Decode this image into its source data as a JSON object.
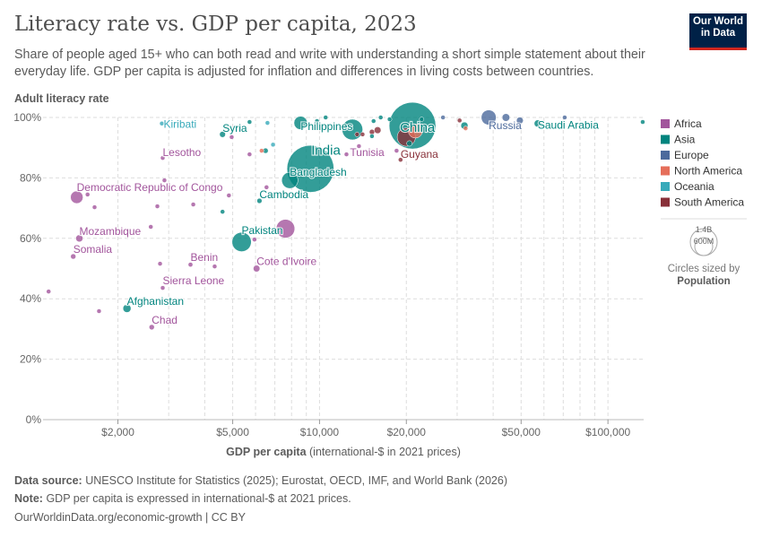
{
  "header": {
    "title": "Literacy rate vs. GDP per capita, 2023",
    "subtitle": "Share of people aged 15+ who can both read and write with understanding a short simple statement about their everyday life. GDP per capita is adjusted for inflation and differences in living costs between countries.",
    "logo_text": "Our World in Data"
  },
  "footer": {
    "source_label": "Data source:",
    "source": "UNESCO Institute for Statistics (2025); Eurostat, OECD, IMF, and World Bank (2026)",
    "note_label": "Note:",
    "note": "GDP per capita is expressed in international-$ at 2021 prices.",
    "url": "OurWorldinData.org/economic-growth | CC BY"
  },
  "colors": {
    "Africa": "#a2559c",
    "Asia": "#00847e",
    "Europe": "#4c6a9c",
    "North America": "#e56e5a",
    "Oceania": "#38aaba",
    "South America": "#883039"
  },
  "chart_data": {
    "type": "scatter",
    "title": "Literacy rate vs. GDP per capita, 2023",
    "ylabel": "Adult literacy rate",
    "xlabel_bold": "GDP per capita",
    "xlabel_rest": "(international-$ in 2021 prices)",
    "x_scale": "log",
    "xlim": [
      1100,
      133000
    ],
    "ylim": [
      0,
      100
    ],
    "grid": true,
    "x_ticks": [
      {
        "v": 2000,
        "label": "$2,000"
      },
      {
        "v": 5000,
        "label": "$5,000"
      },
      {
        "v": 10000,
        "label": "$10,000"
      },
      {
        "v": 20000,
        "label": "$20,000"
      },
      {
        "v": 50000,
        "label": "$50,000"
      },
      {
        "v": 100000,
        "label": "$100,000"
      }
    ],
    "y_ticks": [
      {
        "v": 0,
        "label": "0%"
      },
      {
        "v": 20,
        "label": "20%"
      },
      {
        "v": 40,
        "label": "40%"
      },
      {
        "v": 60,
        "label": "60%"
      },
      {
        "v": 80,
        "label": "80%"
      },
      {
        "v": 100,
        "label": "100%"
      }
    ],
    "legend": {
      "placement": "right",
      "entries": [
        "Africa",
        "Asia",
        "Europe",
        "North America",
        "Oceania",
        "South America"
      ],
      "size_legend": {
        "values": [
          "1.4B",
          "600M"
        ],
        "caption": "Circles sized by",
        "caption_bold": "Population"
      }
    },
    "points": [
      {
        "label": "Democratic Republic of Congo",
        "region": "Africa",
        "x": 1440,
        "y": 73.6,
        "pop": 102
      },
      {
        "label": "Mozambique",
        "region": "Africa",
        "x": 1470,
        "y": 60,
        "pop": 33
      },
      {
        "label": "Somalia",
        "region": "Africa",
        "x": 1400,
        "y": 54,
        "pop": 18
      },
      {
        "label": "Chad",
        "region": "Africa",
        "x": 2620,
        "y": 30.6,
        "pop": 18
      },
      {
        "label": "Afghanistan",
        "region": "Asia",
        "x": 2150,
        "y": 36.8,
        "pop": 42
      },
      {
        "label": "Sierra Leone",
        "region": "Africa",
        "x": 2860,
        "y": 43.6,
        "pop": 8.8
      },
      {
        "label": "Benin",
        "region": "Africa",
        "x": 3570,
        "y": 51.3,
        "pop": 14
      },
      {
        "label": "Cote d'Ivoire",
        "region": "Africa",
        "x": 6050,
        "y": 50,
        "pop": 29
      },
      {
        "label": "Pakistan",
        "region": "Asia",
        "x": 5370,
        "y": 58.8,
        "pop": 240
      },
      {
        "label": "",
        "region": "Africa",
        "x": 7620,
        "y": 63.2,
        "pop": 224
      },
      {
        "label": "Cambodia",
        "region": "Asia",
        "x": 6190,
        "y": 72.4,
        "pop": 17
      },
      {
        "label": "India",
        "region": "Asia",
        "x": 9300,
        "y": 83,
        "pop": 1430
      },
      {
        "label": "Bangladesh",
        "region": "Asia",
        "x": 7890,
        "y": 79.2,
        "pop": 171
      },
      {
        "label": "Philippines",
        "region": "Asia",
        "x": 8600,
        "y": 98.2,
        "pop": 115
      },
      {
        "label": "",
        "region": "Asia",
        "x": 13000,
        "y": 96,
        "pop": 277
      },
      {
        "label": "China",
        "region": "Asia",
        "x": 21000,
        "y": 97.3,
        "pop": 1410
      },
      {
        "label": "Tunisia",
        "region": "Africa",
        "x": 13700,
        "y": 90.5,
        "pop": 12
      },
      {
        "label": "",
        "region": "South America",
        "x": 20000,
        "y": 93.5,
        "pop": 216
      },
      {
        "label": "Guyana",
        "region": "South America",
        "x": 19100,
        "y": 86,
        "pop": 0.8
      },
      {
        "label": "Russia",
        "region": "Europe",
        "x": 38600,
        "y": 100,
        "pop": 144
      },
      {
        "label": "Saudi Arabia",
        "region": "Asia",
        "x": 57100,
        "y": 98,
        "pop": 33
      },
      {
        "label": "Kiribati",
        "region": "Oceania",
        "x": 2840,
        "y": 98,
        "pop": 0.13
      },
      {
        "label": "Syria",
        "region": "Asia",
        "x": 4610,
        "y": 94.4,
        "pop": 23
      },
      {
        "label": "Lesotho",
        "region": "Africa",
        "x": 2860,
        "y": 86.6,
        "pop": 2.3
      },
      {
        "label": "",
        "region": "Africa",
        "x": 1150,
        "y": 42.4,
        "pop": 5
      },
      {
        "label": "",
        "region": "Africa",
        "x": 1720,
        "y": 35.9,
        "pop": 6
      },
      {
        "label": "",
        "region": "Africa",
        "x": 1660,
        "y": 70.3,
        "pop": 4
      },
      {
        "label": "",
        "region": "Africa",
        "x": 1570,
        "y": 74.5,
        "pop": 3
      },
      {
        "label": "",
        "region": "Africa",
        "x": 2740,
        "y": 70.6,
        "pop": 4
      },
      {
        "label": "",
        "region": "Africa",
        "x": 2900,
        "y": 79.2,
        "pop": 3
      },
      {
        "label": "",
        "region": "Africa",
        "x": 3650,
        "y": 71.2,
        "pop": 5
      },
      {
        "label": "",
        "region": "Africa",
        "x": 4850,
        "y": 74.2,
        "pop": 12
      },
      {
        "label": "",
        "region": "Asia",
        "x": 4610,
        "y": 68.8,
        "pop": 8
      },
      {
        "label": "",
        "region": "Africa",
        "x": 2600,
        "y": 63.8,
        "pop": 3
      },
      {
        "label": "",
        "region": "Africa",
        "x": 2800,
        "y": 51.6,
        "pop": 4
      },
      {
        "label": "",
        "region": "Africa",
        "x": 4330,
        "y": 50.7,
        "pop": 4
      },
      {
        "label": "",
        "region": "Africa",
        "x": 5950,
        "y": 59.6,
        "pop": 4
      },
      {
        "label": "",
        "region": "Africa",
        "x": 6550,
        "y": 76.9,
        "pop": 8
      },
      {
        "label": "",
        "region": "Africa",
        "x": 4960,
        "y": 93.5,
        "pop": 3
      },
      {
        "label": "",
        "region": "Asia",
        "x": 5720,
        "y": 98.5,
        "pop": 4
      },
      {
        "label": "",
        "region": "Oceania",
        "x": 6600,
        "y": 98.2,
        "pop": 1
      },
      {
        "label": "",
        "region": "Africa",
        "x": 5720,
        "y": 87.8,
        "pop": 3
      },
      {
        "label": "",
        "region": "North America",
        "x": 6300,
        "y": 89,
        "pop": 2
      },
      {
        "label": "",
        "region": "Asia",
        "x": 6500,
        "y": 89,
        "pop": 18
      },
      {
        "label": "",
        "region": "Oceania",
        "x": 6900,
        "y": 91,
        "pop": 1
      },
      {
        "label": "",
        "region": "South America",
        "x": 15200,
        "y": 95.2,
        "pop": 18
      },
      {
        "label": "",
        "region": "South America",
        "x": 13500,
        "y": 94.4,
        "pop": 5
      },
      {
        "label": "",
        "region": "South America",
        "x": 14100,
        "y": 94.4,
        "pop": 4
      },
      {
        "label": "",
        "region": "South America",
        "x": 15900,
        "y": 95.8,
        "pop": 30
      },
      {
        "label": "",
        "region": "Asia",
        "x": 15200,
        "y": 93.8,
        "pop": 4
      },
      {
        "label": "",
        "region": "Africa",
        "x": 12400,
        "y": 87.8,
        "pop": 3
      },
      {
        "label": "",
        "region": "Africa",
        "x": 18500,
        "y": 89,
        "pop": 2
      },
      {
        "label": "",
        "region": "Asia",
        "x": 20500,
        "y": 91.4,
        "pop": 20
      },
      {
        "label": "",
        "region": "Asia",
        "x": 10500,
        "y": 100,
        "pop": 3
      },
      {
        "label": "",
        "region": "Asia",
        "x": 9800,
        "y": 98.8,
        "pop": 3
      },
      {
        "label": "",
        "region": "Asia",
        "x": 15400,
        "y": 98.8,
        "pop": 3
      },
      {
        "label": "",
        "region": "Asia",
        "x": 16300,
        "y": 100,
        "pop": 5
      },
      {
        "label": "",
        "region": "Asia",
        "x": 17500,
        "y": 99.4,
        "pop": 3
      },
      {
        "label": "",
        "region": "Asia",
        "x": 22600,
        "y": 99.4,
        "pop": 3
      },
      {
        "label": "",
        "region": "North America",
        "x": 21500,
        "y": 95.5,
        "pop": 128
      },
      {
        "label": "",
        "region": "Europe",
        "x": 26800,
        "y": 100,
        "pop": 3
      },
      {
        "label": "",
        "region": "South America",
        "x": 30600,
        "y": 99,
        "pop": 3
      },
      {
        "label": "",
        "region": "North America",
        "x": 32100,
        "y": 96.4,
        "pop": 3
      },
      {
        "label": "",
        "region": "Asia",
        "x": 31800,
        "y": 97.3,
        "pop": 33
      },
      {
        "label": "",
        "region": "Europe",
        "x": 44300,
        "y": 100,
        "pop": 38
      },
      {
        "label": "",
        "region": "Europe",
        "x": 49500,
        "y": 99,
        "pop": 30
      },
      {
        "label": "",
        "region": "Europe",
        "x": 70800,
        "y": 100,
        "pop": 3
      },
      {
        "label": "",
        "region": "Asia",
        "x": 132000,
        "y": 98.5,
        "pop": 3
      }
    ]
  }
}
